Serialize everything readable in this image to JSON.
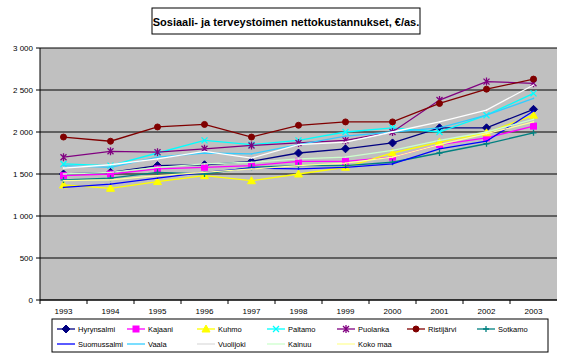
{
  "chart_data": {
    "type": "line",
    "title": "Sosiaali- ja terveystoimen nettokustannukset, €/as.",
    "categories": [
      "1993",
      "1994",
      "1995",
      "1996",
      "1997",
      "1998",
      "1999",
      "2000",
      "2001",
      "2002",
      "2003"
    ],
    "ylim": [
      0,
      3000
    ],
    "yticks": [
      0,
      500,
      {
        "value": 1000,
        "label": "1 000"
      },
      {
        "value": 1500,
        "label": "1 500"
      },
      {
        "value": 2000,
        "label": "2 000"
      },
      {
        "value": 2500,
        "label": "2 500"
      },
      {
        "value": 3000,
        "label": "3 000"
      }
    ],
    "grid": true,
    "legend": "bottom",
    "series": [
      {
        "name": "Hyrynsalmi",
        "color": "#000080",
        "marker": "diamond",
        "values": [
          1500,
          1520,
          1600,
          1610,
          1650,
          1750,
          1800,
          1870,
          2050,
          2050,
          2270
        ]
      },
      {
        "name": "Kajaani",
        "color": "#ff00ff",
        "marker": "square",
        "values": [
          1480,
          1500,
          1560,
          1580,
          1600,
          1650,
          1650,
          1700,
          1850,
          1930,
          2070
        ]
      },
      {
        "name": "Kuhmo",
        "color": "#ffff00",
        "marker": "triangle",
        "values": [
          1370,
          1330,
          1410,
          1480,
          1420,
          1500,
          1580,
          1750,
          1880,
          1990,
          2200
        ]
      },
      {
        "name": "Paltamo",
        "color": "#00ffff",
        "marker": "cross",
        "values": [
          1620,
          1600,
          1750,
          1900,
          1850,
          1900,
          2000,
          2050,
          2000,
          2200,
          2460
        ]
      },
      {
        "name": "Puolanka",
        "color": "#800080",
        "marker": "star",
        "values": [
          1700,
          1770,
          1760,
          1800,
          1840,
          1870,
          1900,
          2000,
          2380,
          2600,
          2580
        ]
      },
      {
        "name": "Ristijärvi",
        "color": "#800000",
        "marker": "circle",
        "values": [
          1940,
          1890,
          2060,
          2090,
          1940,
          2080,
          2120,
          2120,
          2340,
          2510,
          2630
        ]
      },
      {
        "name": "Sotkamo",
        "color": "#008080",
        "marker": "plus",
        "values": [
          1430,
          1450,
          1520,
          1500,
          1580,
          1600,
          1600,
          1640,
          1750,
          1860,
          1990
        ]
      },
      {
        "name": "Suomussalmi",
        "color": "#0000ff",
        "marker": "none",
        "values": [
          1340,
          1380,
          1450,
          1520,
          1570,
          1560,
          1580,
          1620,
          1800,
          1890,
          2250
        ]
      },
      {
        "name": "Vaala",
        "color": "#33ccff",
        "marker": "none",
        "values": [
          1600,
          1580,
          1700,
          1750,
          1740,
          1850,
          1950,
          2000,
          2050,
          2200,
          2400
        ]
      },
      {
        "name": "Vuolijoki",
        "color": "#ffffff",
        "marker": "none",
        "values": [
          1570,
          1610,
          1680,
          1770,
          1690,
          1850,
          1880,
          2000,
          2120,
          2260,
          2560
        ]
      },
      {
        "name": "Kainuu",
        "color": "#ccffcc",
        "marker": "none",
        "values": [
          1500,
          1520,
          1580,
          1620,
          1640,
          1680,
          1700,
          1780,
          1900,
          2000,
          2150
        ]
      },
      {
        "name": "Koko maa",
        "color": "#ffff99",
        "marker": "none",
        "values": [
          1420,
          1430,
          1480,
          1520,
          1560,
          1600,
          1630,
          1700,
          1850,
          1980,
          2120
        ]
      }
    ]
  }
}
